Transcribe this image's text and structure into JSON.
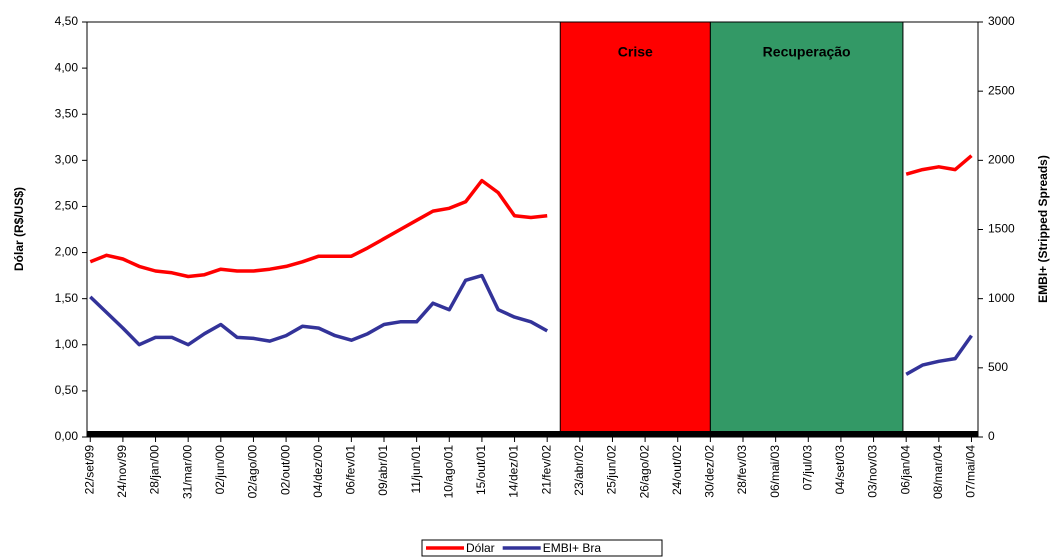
{
  "chart_data": {
    "type": "line",
    "y_label": "Dólar (R$/US$)",
    "y2_label": "EMBI+ (Stripped Spreads)",
    "categories": [
      "22/set/99",
      null,
      "24/nov/99",
      null,
      "28/jan/00",
      null,
      "31/mar/00",
      null,
      "02/jun/00",
      null,
      "02/ago/00",
      null,
      "02/out/00",
      null,
      "04/dez/00",
      null,
      "06/fev/01",
      null,
      "09/abr/01",
      null,
      "11/jun/01",
      null,
      "10/ago/01",
      null,
      "15/out/01",
      null,
      "14/dez/01",
      null,
      "21/fev/02",
      null,
      "23/abr/02",
      null,
      "25/jun/02",
      null,
      "26/ago/02",
      null,
      "24/out/02",
      null,
      "30/dez/02",
      null,
      "28/fev/03",
      null,
      "06/mai/03",
      null,
      "07/jul/03",
      null,
      "04/set/03",
      null,
      "03/nov/03",
      null,
      "06/jan/04",
      null,
      "08/mar/04",
      null,
      "07/mai/04"
    ],
    "xlim": [
      -0.2,
      54.4
    ],
    "ylim": [
      0,
      4.5
    ],
    "yticks": [
      {
        "value": 0,
        "label": "0,00"
      },
      {
        "value": 0.5,
        "label": "0,50"
      },
      {
        "value": 1,
        "label": "1,00"
      },
      {
        "value": 1.5,
        "label": "1,50"
      },
      {
        "value": 2,
        "label": "2,00"
      },
      {
        "value": 2.5,
        "label": "2,50"
      },
      {
        "value": 3,
        "label": "3,00"
      },
      {
        "value": 3.5,
        "label": "3,50"
      },
      {
        "value": 4,
        "label": "4,00"
      },
      {
        "value": 4.5,
        "label": "4,50"
      }
    ],
    "y2lim": [
      0,
      3000
    ],
    "y2ticks": [
      0,
      500,
      1000,
      1500,
      2000,
      2500,
      3000
    ],
    "series": [
      {
        "name": "Dólar",
        "color": "#ff0000",
        "values": [
          1.9,
          1.97,
          1.93,
          1.85,
          1.8,
          1.78,
          1.74,
          1.76,
          1.82,
          1.8,
          1.8,
          1.82,
          1.85,
          1.9,
          1.96,
          1.96,
          1.96,
          2.05,
          2.15,
          2.25,
          2.35,
          2.45,
          2.48,
          2.55,
          2.78,
          2.65,
          2.4,
          2.38,
          2.4,
          null,
          null,
          null,
          null,
          null,
          null,
          null,
          null,
          null,
          null,
          null,
          null,
          null,
          null,
          null,
          null,
          null,
          null,
          null,
          null,
          null,
          2.85,
          2.9,
          2.93,
          2.9,
          3.05
        ]
      },
      {
        "name": "EMBI+ Bra",
        "color": "#333399",
        "axis": "y2",
        "values": [
          1013,
          900,
          787,
          667,
          720,
          720,
          667,
          747,
          813,
          720,
          713,
          693,
          733,
          800,
          787,
          733,
          700,
          747,
          813,
          833,
          833,
          967,
          920,
          1133,
          1167,
          920,
          867,
          833,
          767,
          null,
          null,
          null,
          null,
          null,
          null,
          null,
          null,
          null,
          null,
          null,
          null,
          null,
          null,
          null,
          null,
          null,
          null,
          null,
          null,
          null,
          453,
          520,
          547,
          567,
          733
        ]
      }
    ],
    "regions": [
      {
        "label": "Crise",
        "color": "#ff0000",
        "start": 28.8,
        "end": 38.0
      },
      {
        "label": "Recuperação",
        "color": "#339966",
        "start": 38.0,
        "end": 49.8
      }
    ],
    "legend": "bottom"
  }
}
